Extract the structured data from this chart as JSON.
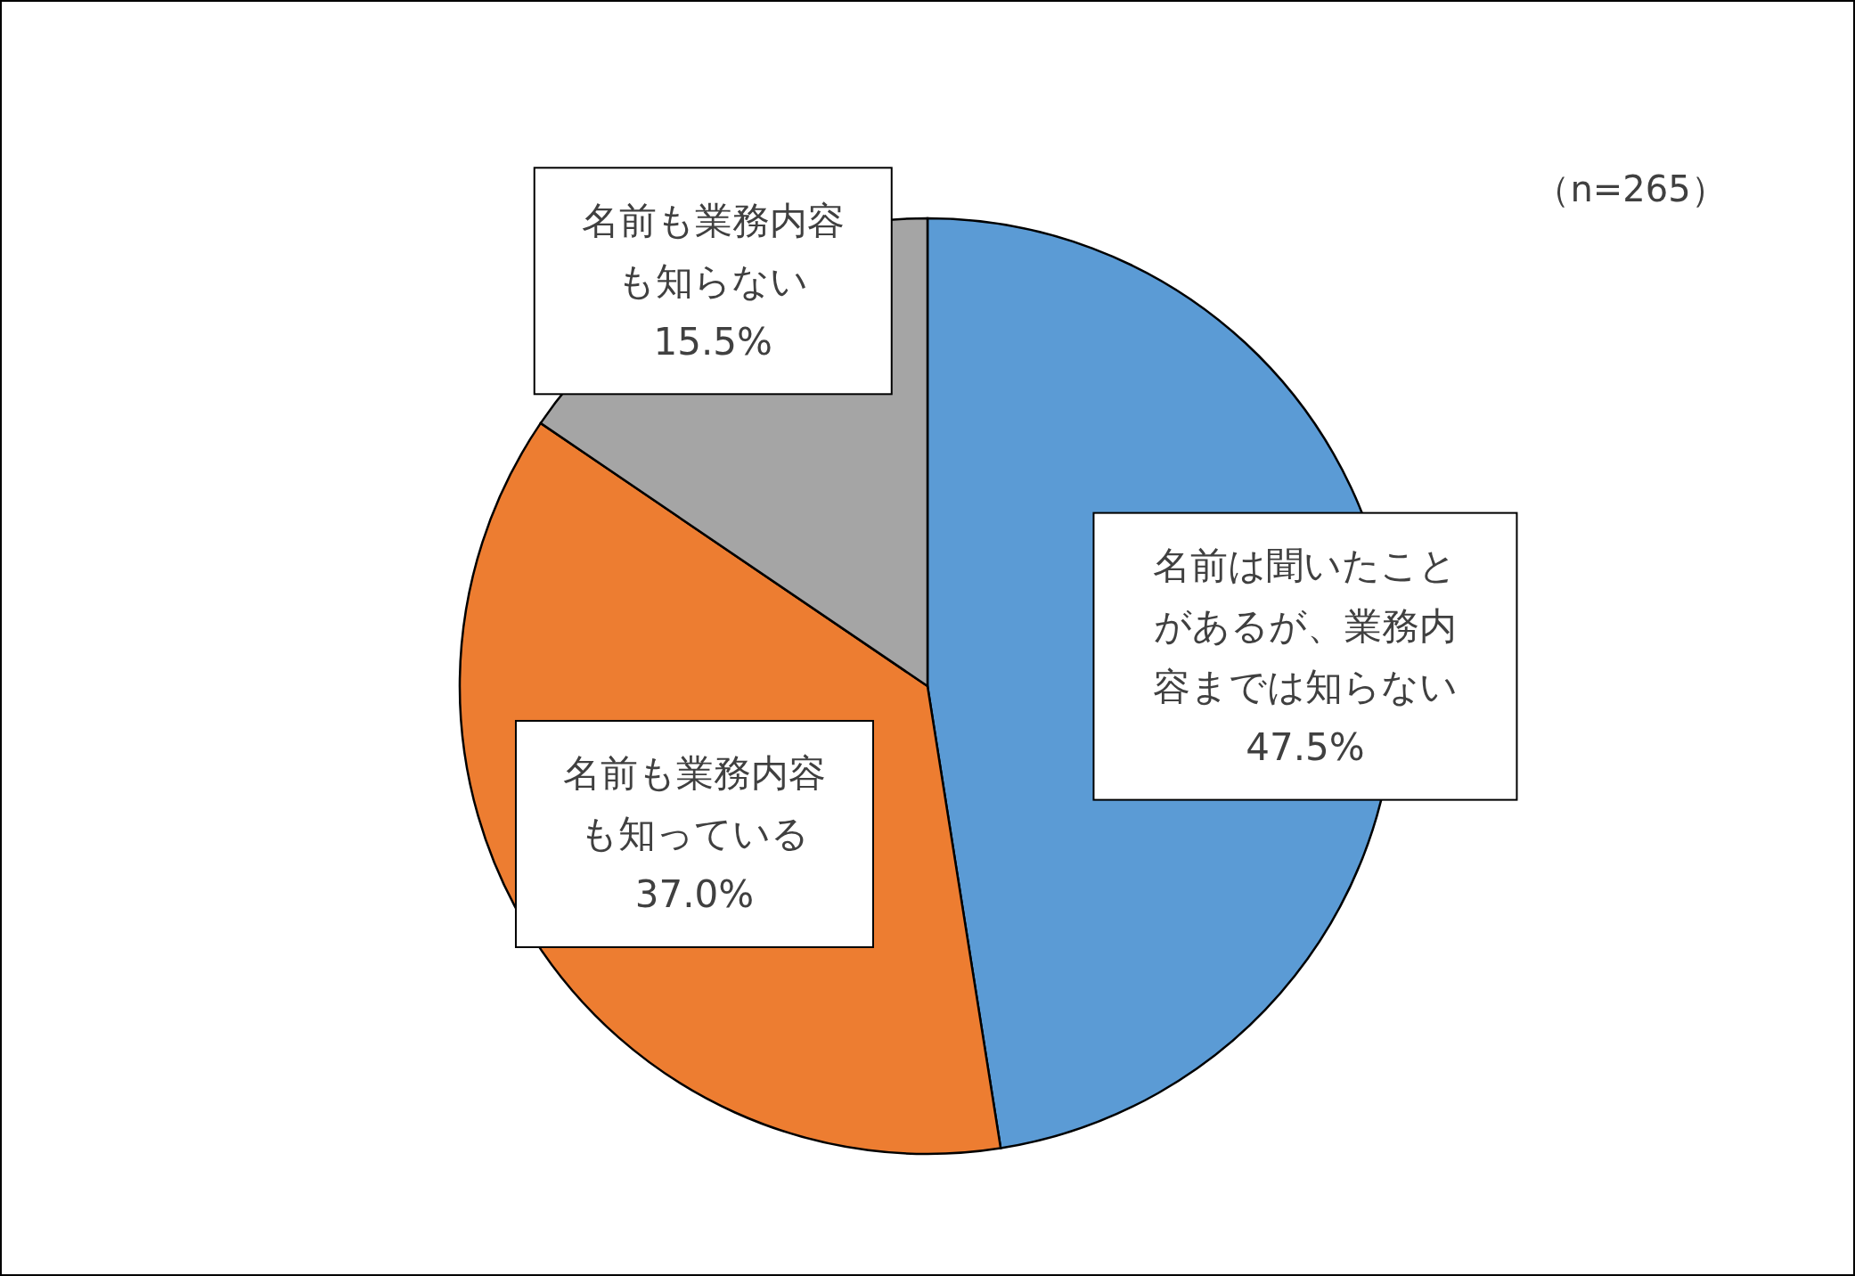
{
  "chart_data": {
    "type": "pie",
    "categories": [
      "名前は聞いたことがあるが、業務内容までは知らない",
      "名前も業務内容も知っている",
      "名前も業務内容も知らない"
    ],
    "values": [
      47.5,
      37.0,
      15.5
    ],
    "colors": [
      "#5b9bd5",
      "#ed7d31",
      "#a5a5a5"
    ],
    "value_labels": [
      "47.5%",
      "37.0%",
      "15.5%"
    ],
    "annotations": [
      "（n=265）"
    ]
  }
}
